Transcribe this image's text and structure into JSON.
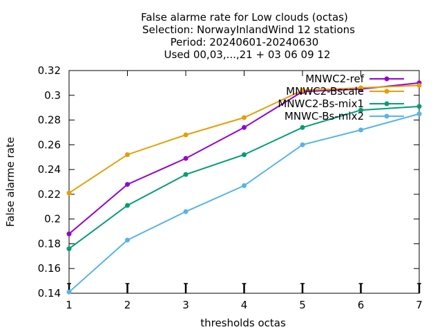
{
  "chart_data": {
    "type": "line",
    "title_lines": [
      "False alarme rate  for Low clouds (octas)",
      "Selection: NorwayInlandWind     12 stations",
      "Period: 20240601-20240630",
      "Used 00,03,...,21 + 03 06 09 12"
    ],
    "xlabel": "thresholds octas",
    "ylabel": "False alarme rate",
    "xlim": [
      1,
      7
    ],
    "ylim": [
      0.14,
      0.32
    ],
    "x_ticks": [
      "1",
      "2",
      "3",
      "4",
      "5",
      "6",
      "7"
    ],
    "y_ticks": [
      "0.14",
      "0.16",
      "0.18",
      "0.2",
      "0.22",
      "0.24",
      "0.26",
      "0.28",
      "0.3",
      "0.32"
    ],
    "grid": false,
    "legend_position": "top-right",
    "x": [
      1,
      2,
      3,
      4,
      5,
      6,
      7
    ],
    "series": [
      {
        "name": "MNWC2-ref",
        "color": "#9400d3",
        "values": [
          0.188,
          0.228,
          0.249,
          0.274,
          0.303,
          0.305,
          0.31
        ]
      },
      {
        "name": "MNWC2-Bscale",
        "color": "#e69f00",
        "values": [
          0.221,
          0.252,
          0.268,
          0.282,
          0.304,
          0.306,
          0.308
        ]
      },
      {
        "name": "MNWC2-Bs-mix1",
        "color": "#009e73",
        "values": [
          0.176,
          0.211,
          0.236,
          0.252,
          0.274,
          0.288,
          0.291
        ]
      },
      {
        "name": "MNWC-Bs-mix2",
        "color": "#56b4e9",
        "values": [
          0.141,
          0.183,
          0.206,
          0.227,
          0.26,
          0.272,
          0.285
        ]
      }
    ]
  }
}
